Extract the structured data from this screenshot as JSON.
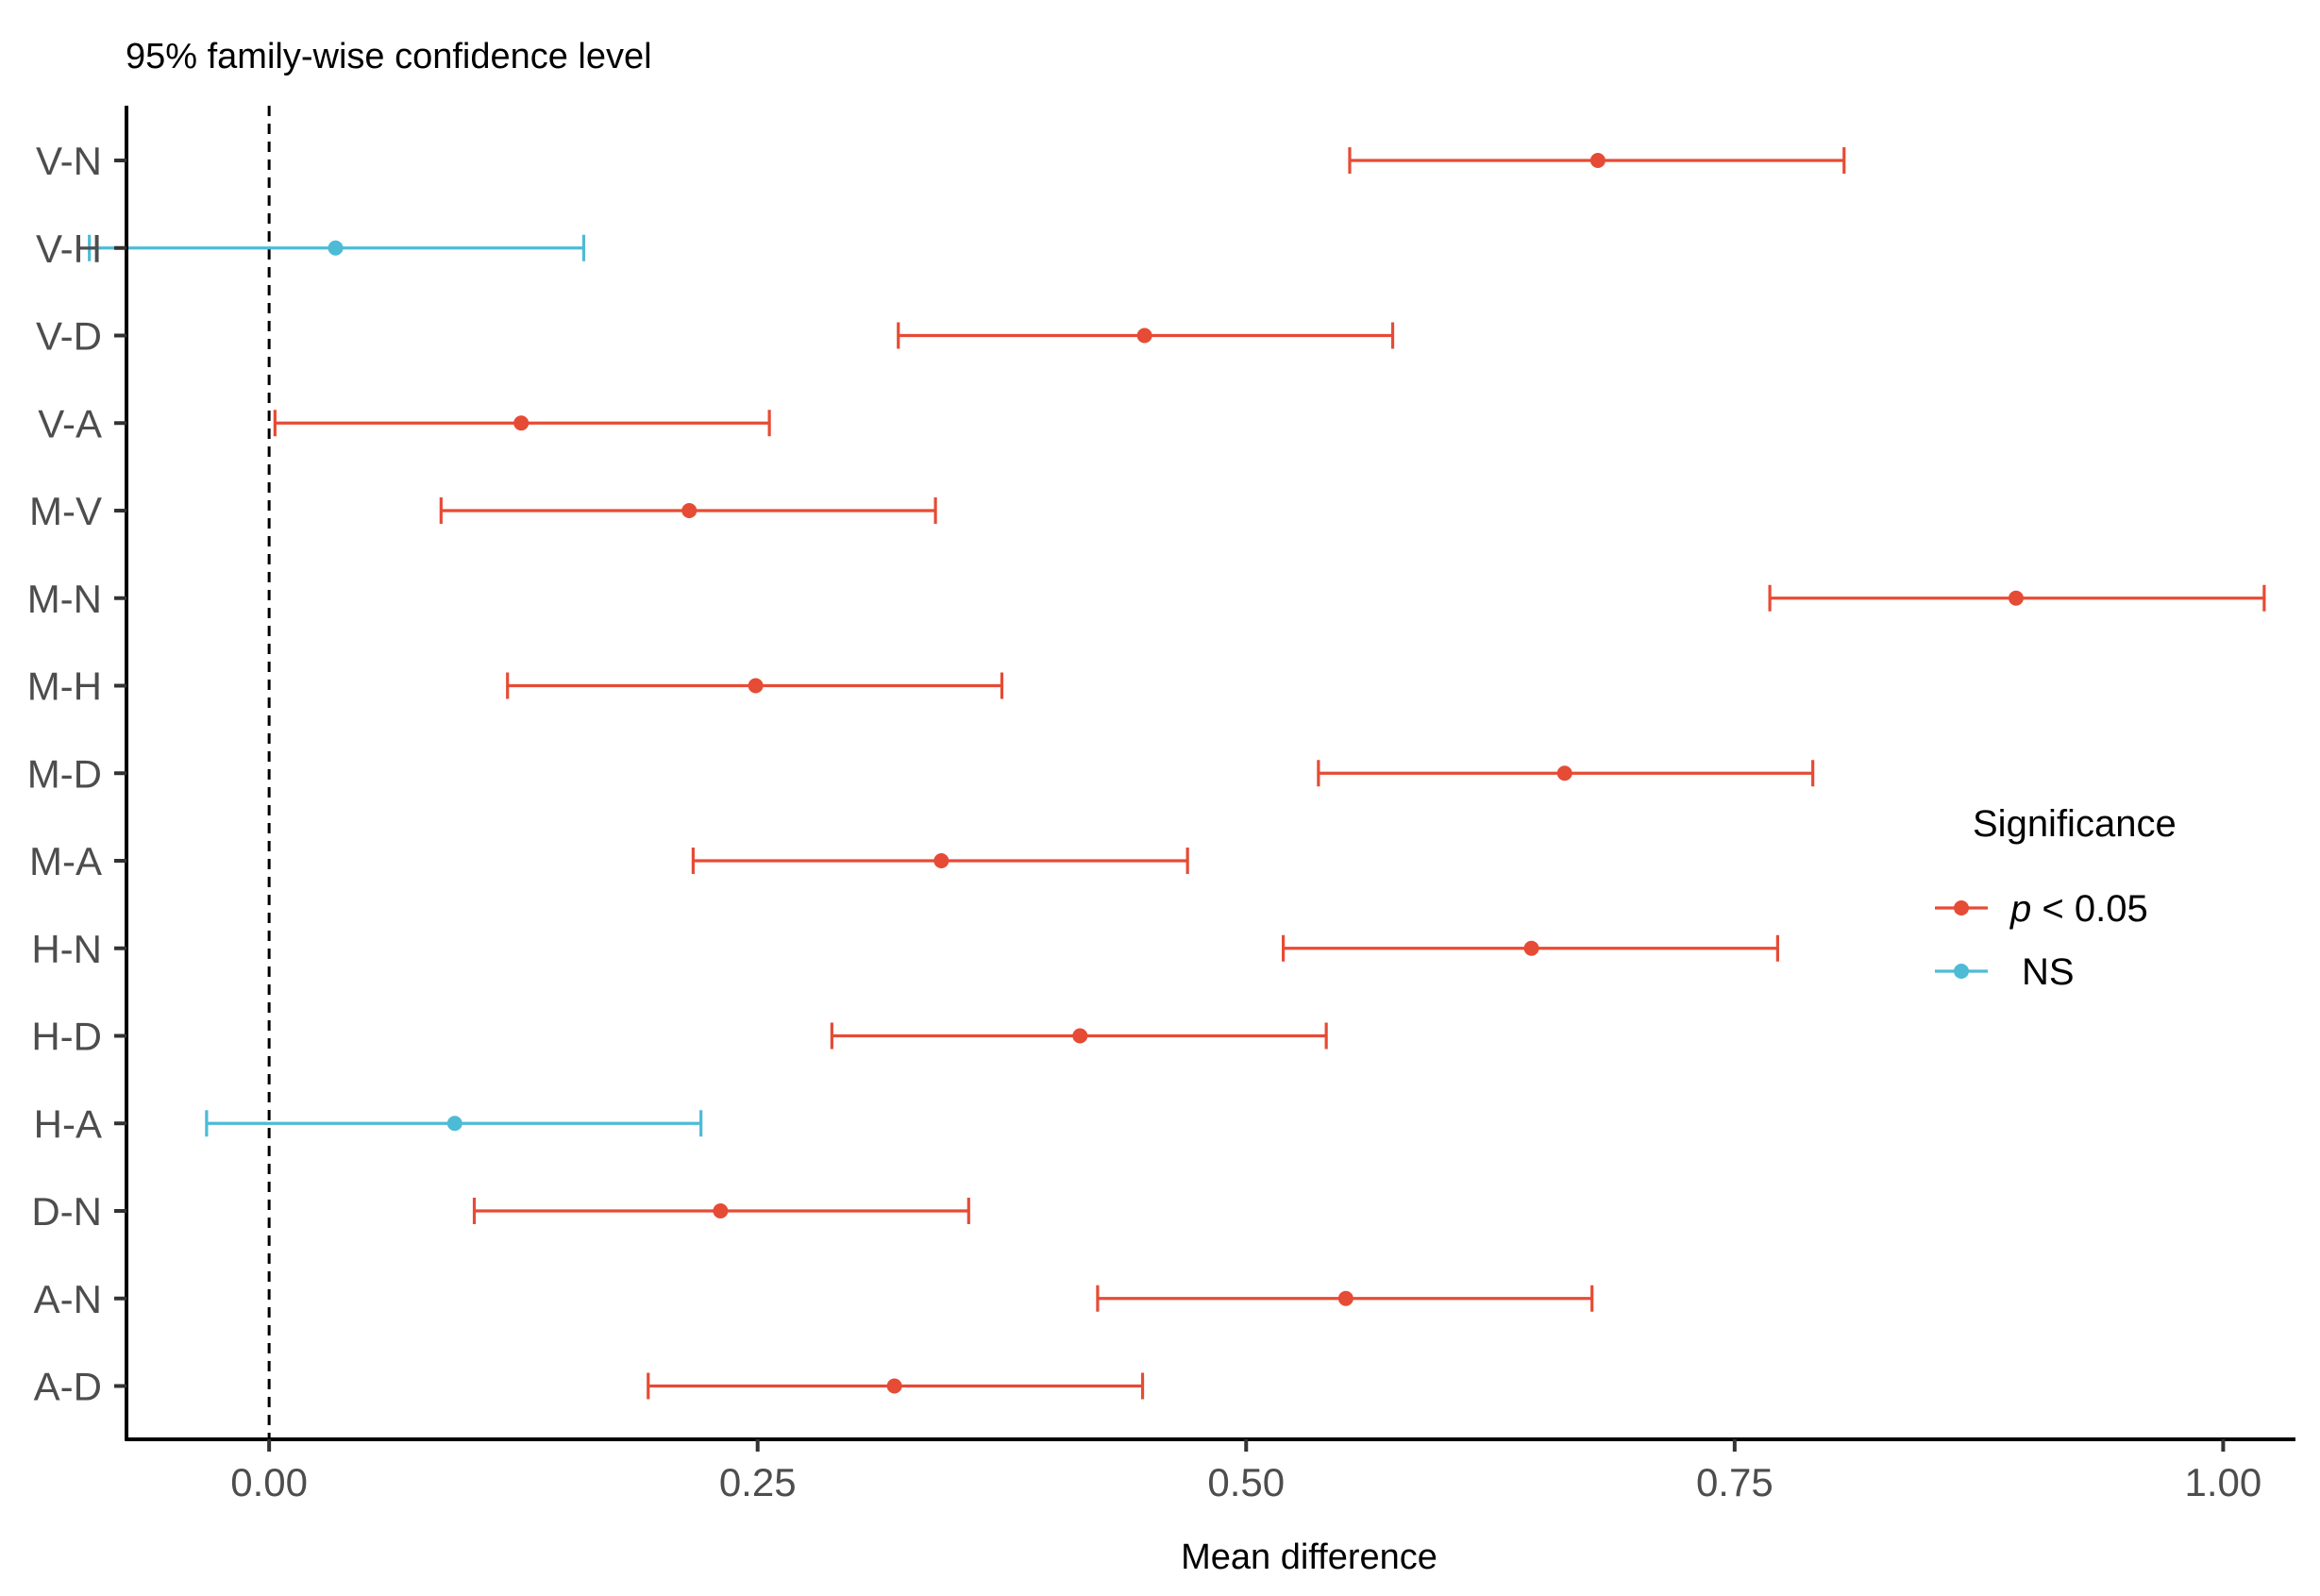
{
  "chart_data": {
    "type": "errorbar",
    "title": "95% family-wise confidence level",
    "xlabel": "Mean difference",
    "ylabel": "",
    "xlim": [
      -0.073,
      1.037
    ],
    "x_ticks": [
      0.0,
      0.25,
      0.5,
      0.75,
      1.0
    ],
    "x_tick_labels": [
      "0.00",
      "0.25",
      "0.50",
      "0.75",
      "1.00"
    ],
    "reference_line": 0,
    "categories": [
      "V-N",
      "V-H",
      "V-D",
      "V-A",
      "M-V",
      "M-N",
      "M-H",
      "M-D",
      "M-A",
      "H-N",
      "H-D",
      "H-A",
      "D-N",
      "A-N",
      "A-D"
    ],
    "estimates": [
      {
        "comparison": "V-N",
        "diff": 0.68,
        "lwr": 0.553,
        "upr": 0.806,
        "significance": "p < 0.05"
      },
      {
        "comparison": "V-H",
        "diff": 0.034,
        "lwr": -0.092,
        "upr": 0.161,
        "significance": "NS"
      },
      {
        "comparison": "V-D",
        "diff": 0.448,
        "lwr": 0.322,
        "upr": 0.575,
        "significance": "p < 0.05"
      },
      {
        "comparison": "V-A",
        "diff": 0.129,
        "lwr": 0.003,
        "upr": 0.256,
        "significance": "p < 0.05"
      },
      {
        "comparison": "M-V",
        "diff": 0.215,
        "lwr": 0.088,
        "upr": 0.341,
        "significance": "p < 0.05"
      },
      {
        "comparison": "M-N",
        "diff": 0.894,
        "lwr": 0.768,
        "upr": 1.021,
        "significance": "p < 0.05"
      },
      {
        "comparison": "M-H",
        "diff": 0.249,
        "lwr": 0.122,
        "upr": 0.375,
        "significance": "p < 0.05"
      },
      {
        "comparison": "M-D",
        "diff": 0.663,
        "lwr": 0.537,
        "upr": 0.79,
        "significance": "p < 0.05"
      },
      {
        "comparison": "M-A",
        "diff": 0.344,
        "lwr": 0.217,
        "upr": 0.47,
        "significance": "p < 0.05"
      },
      {
        "comparison": "H-N",
        "diff": 0.646,
        "lwr": 0.519,
        "upr": 0.772,
        "significance": "p < 0.05"
      },
      {
        "comparison": "H-D",
        "diff": 0.415,
        "lwr": 0.288,
        "upr": 0.541,
        "significance": "p < 0.05"
      },
      {
        "comparison": "H-A",
        "diff": 0.095,
        "lwr": -0.032,
        "upr": 0.221,
        "significance": "NS"
      },
      {
        "comparison": "D-N",
        "diff": 0.231,
        "lwr": 0.105,
        "upr": 0.358,
        "significance": "p < 0.05"
      },
      {
        "comparison": "A-N",
        "diff": 0.551,
        "lwr": 0.424,
        "upr": 0.677,
        "significance": "p < 0.05"
      },
      {
        "comparison": "A-D",
        "diff": 0.32,
        "lwr": 0.194,
        "upr": 0.447,
        "significance": "p < 0.05"
      }
    ],
    "legend": {
      "title": "Significance",
      "placement": "right",
      "items": [
        {
          "key": "p < 0.05",
          "label_italic": "p",
          "label_rest": " < 0.05",
          "color": "#E64B35"
        },
        {
          "key": "NS",
          "label": "NS",
          "color": "#4DBBD5"
        }
      ]
    },
    "colors": {
      "p < 0.05": "#E64B35",
      "NS": "#4DBBD5"
    }
  }
}
